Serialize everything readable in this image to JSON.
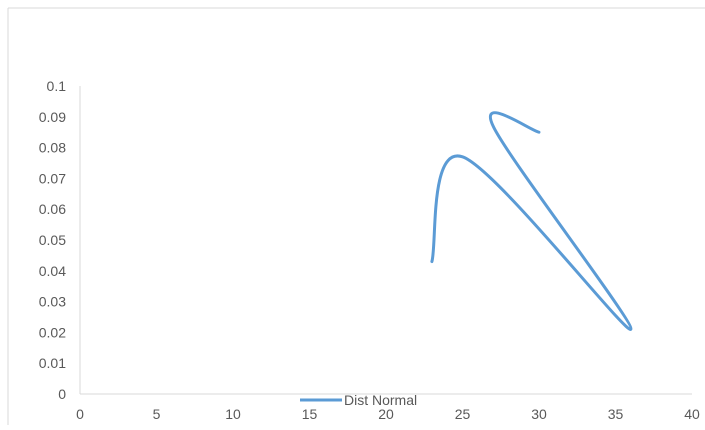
{
  "chart_data": {
    "type": "line",
    "title": "",
    "xlabel": "",
    "ylabel": "",
    "xlim": [
      0,
      40
    ],
    "ylim": [
      0,
      0.1
    ],
    "x_ticks": [
      "0",
      "5",
      "10",
      "15",
      "20",
      "25",
      "30",
      "35",
      "40"
    ],
    "y_ticks": [
      "0",
      "0.01",
      "0.02",
      "0.03",
      "0.04",
      "0.05",
      "0.06",
      "0.07",
      "0.08",
      "0.09",
      "0.1"
    ],
    "grid": false,
    "legend_position": "bottom",
    "series": [
      {
        "name": "Dist Normal",
        "color": "#5b9bd5",
        "smooth": true,
        "points": [
          {
            "x": 23,
            "y": 0.043
          },
          {
            "x": 25,
            "y": 0.077
          },
          {
            "x": 36,
            "y": 0.021
          },
          {
            "x": 27,
            "y": 0.087
          },
          {
            "x": 30,
            "y": 0.085
          }
        ]
      }
    ]
  }
}
